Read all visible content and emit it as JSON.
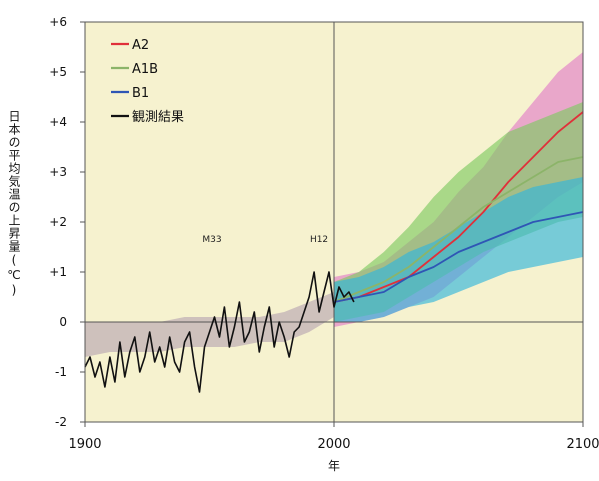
{
  "chart_data": {
    "type": "line",
    "xlabel": "年",
    "ylabel": "日本の平均気温の上昇量(℃)",
    "xlim": [
      1900,
      2100
    ],
    "ylim": [
      -2,
      6
    ],
    "x_ticks": [
      "1900",
      "2000",
      "2100"
    ],
    "y_ticks": [
      "-2",
      "-1",
      "0",
      "+1",
      "+2",
      "+3",
      "+4",
      "+5",
      "+6"
    ],
    "reference_lines": {
      "x": 2000,
      "y": 0
    },
    "background_color": "#f6f2cf",
    "annotations": [
      {
        "text": "M33",
        "x": 1951,
        "y": 1.6
      },
      {
        "text": "H12",
        "x": 1994,
        "y": 1.6
      }
    ],
    "legend": {
      "placement": "top-left",
      "entries": [
        {
          "label": "A2",
          "color": "#e0303a"
        },
        {
          "label": "A1B",
          "color": "#8cb469"
        },
        {
          "label": "B1",
          "color": "#2f56b5"
        },
        {
          "label": "観測結果",
          "color": "#111111"
        }
      ]
    },
    "series": [
      {
        "name": "A2",
        "color": "#e0303a",
        "band_color": "#e27ec8",
        "x": [
          2000,
          2010,
          2020,
          2030,
          2040,
          2050,
          2060,
          2070,
          2080,
          2090,
          2100
        ],
        "y": [
          0.4,
          0.5,
          0.7,
          0.9,
          1.3,
          1.7,
          2.2,
          2.8,
          3.3,
          3.8,
          4.2
        ],
        "lower": [
          -0.1,
          0.0,
          0.1,
          0.3,
          0.5,
          0.9,
          1.3,
          1.7,
          2.1,
          2.5,
          2.8
        ],
        "upper": [
          0.9,
          1.0,
          1.2,
          1.6,
          2.0,
          2.6,
          3.1,
          3.8,
          4.4,
          5.0,
          5.4
        ]
      },
      {
        "name": "A1B",
        "color": "#8cb469",
        "band_color": "#7fca62",
        "x": [
          2000,
          2010,
          2020,
          2030,
          2040,
          2050,
          2060,
          2070,
          2080,
          2090,
          2100
        ],
        "y": [
          0.4,
          0.6,
          0.8,
          1.1,
          1.5,
          1.9,
          2.3,
          2.6,
          2.9,
          3.2,
          3.3
        ],
        "lower": [
          0.0,
          0.1,
          0.2,
          0.5,
          0.8,
          1.1,
          1.4,
          1.6,
          1.8,
          2.0,
          2.1
        ],
        "upper": [
          0.8,
          1.0,
          1.4,
          1.9,
          2.5,
          3.0,
          3.4,
          3.8,
          4.0,
          4.2,
          4.4
        ]
      },
      {
        "name": "B1",
        "color": "#2f56b5",
        "band_color": "#33b6dc",
        "x": [
          2000,
          2010,
          2020,
          2030,
          2040,
          2050,
          2060,
          2070,
          2080,
          2090,
          2100
        ],
        "y": [
          0.4,
          0.5,
          0.6,
          0.9,
          1.1,
          1.4,
          1.6,
          1.8,
          2.0,
          2.1,
          2.2
        ],
        "lower": [
          0.0,
          0.0,
          0.1,
          0.3,
          0.4,
          0.6,
          0.8,
          1.0,
          1.1,
          1.2,
          1.3
        ],
        "upper": [
          0.8,
          0.9,
          1.1,
          1.4,
          1.6,
          1.9,
          2.2,
          2.5,
          2.7,
          2.8,
          2.9
        ]
      },
      {
        "name": "観測結果",
        "color": "#111111",
        "band_color": "#b8a6b2",
        "band_x": [
          1900,
          1910,
          1920,
          1930,
          1940,
          1950,
          1960,
          1970,
          1980,
          1990,
          2000
        ],
        "band_lower": [
          -0.7,
          -0.6,
          -0.6,
          -0.6,
          -0.5,
          -0.5,
          -0.5,
          -0.4,
          -0.4,
          -0.2,
          0.1
        ],
        "band_upper": [
          0.0,
          0.0,
          0.0,
          0.0,
          0.1,
          0.1,
          0.1,
          0.1,
          0.2,
          0.4,
          0.6
        ],
        "x": [
          1900,
          1902,
          1904,
          1906,
          1908,
          1910,
          1912,
          1914,
          1916,
          1918,
          1920,
          1922,
          1924,
          1926,
          1928,
          1930,
          1932,
          1934,
          1936,
          1938,
          1940,
          1942,
          1944,
          1946,
          1948,
          1950,
          1952,
          1954,
          1956,
          1958,
          1960,
          1962,
          1964,
          1966,
          1968,
          1970,
          1972,
          1974,
          1976,
          1978,
          1980,
          1982,
          1984,
          1986,
          1988,
          1990,
          1992,
          1994,
          1996,
          1998,
          2000,
          2002,
          2004,
          2006,
          2008
        ],
        "y": [
          -0.9,
          -0.7,
          -1.1,
          -0.8,
          -1.3,
          -0.7,
          -1.2,
          -0.4,
          -1.1,
          -0.6,
          -0.3,
          -1.0,
          -0.7,
          -0.2,
          -0.8,
          -0.5,
          -0.9,
          -0.3,
          -0.8,
          -1.0,
          -0.4,
          -0.2,
          -0.9,
          -1.4,
          -0.5,
          -0.2,
          0.1,
          -0.3,
          0.3,
          -0.5,
          -0.1,
          0.4,
          -0.4,
          -0.2,
          0.2,
          -0.6,
          -0.1,
          0.3,
          -0.5,
          0.0,
          -0.3,
          -0.7,
          -0.2,
          -0.1,
          0.2,
          0.5,
          1.0,
          0.2,
          0.6,
          1.0,
          0.3,
          0.7,
          0.5,
          0.6,
          0.4
        ]
      }
    ]
  }
}
